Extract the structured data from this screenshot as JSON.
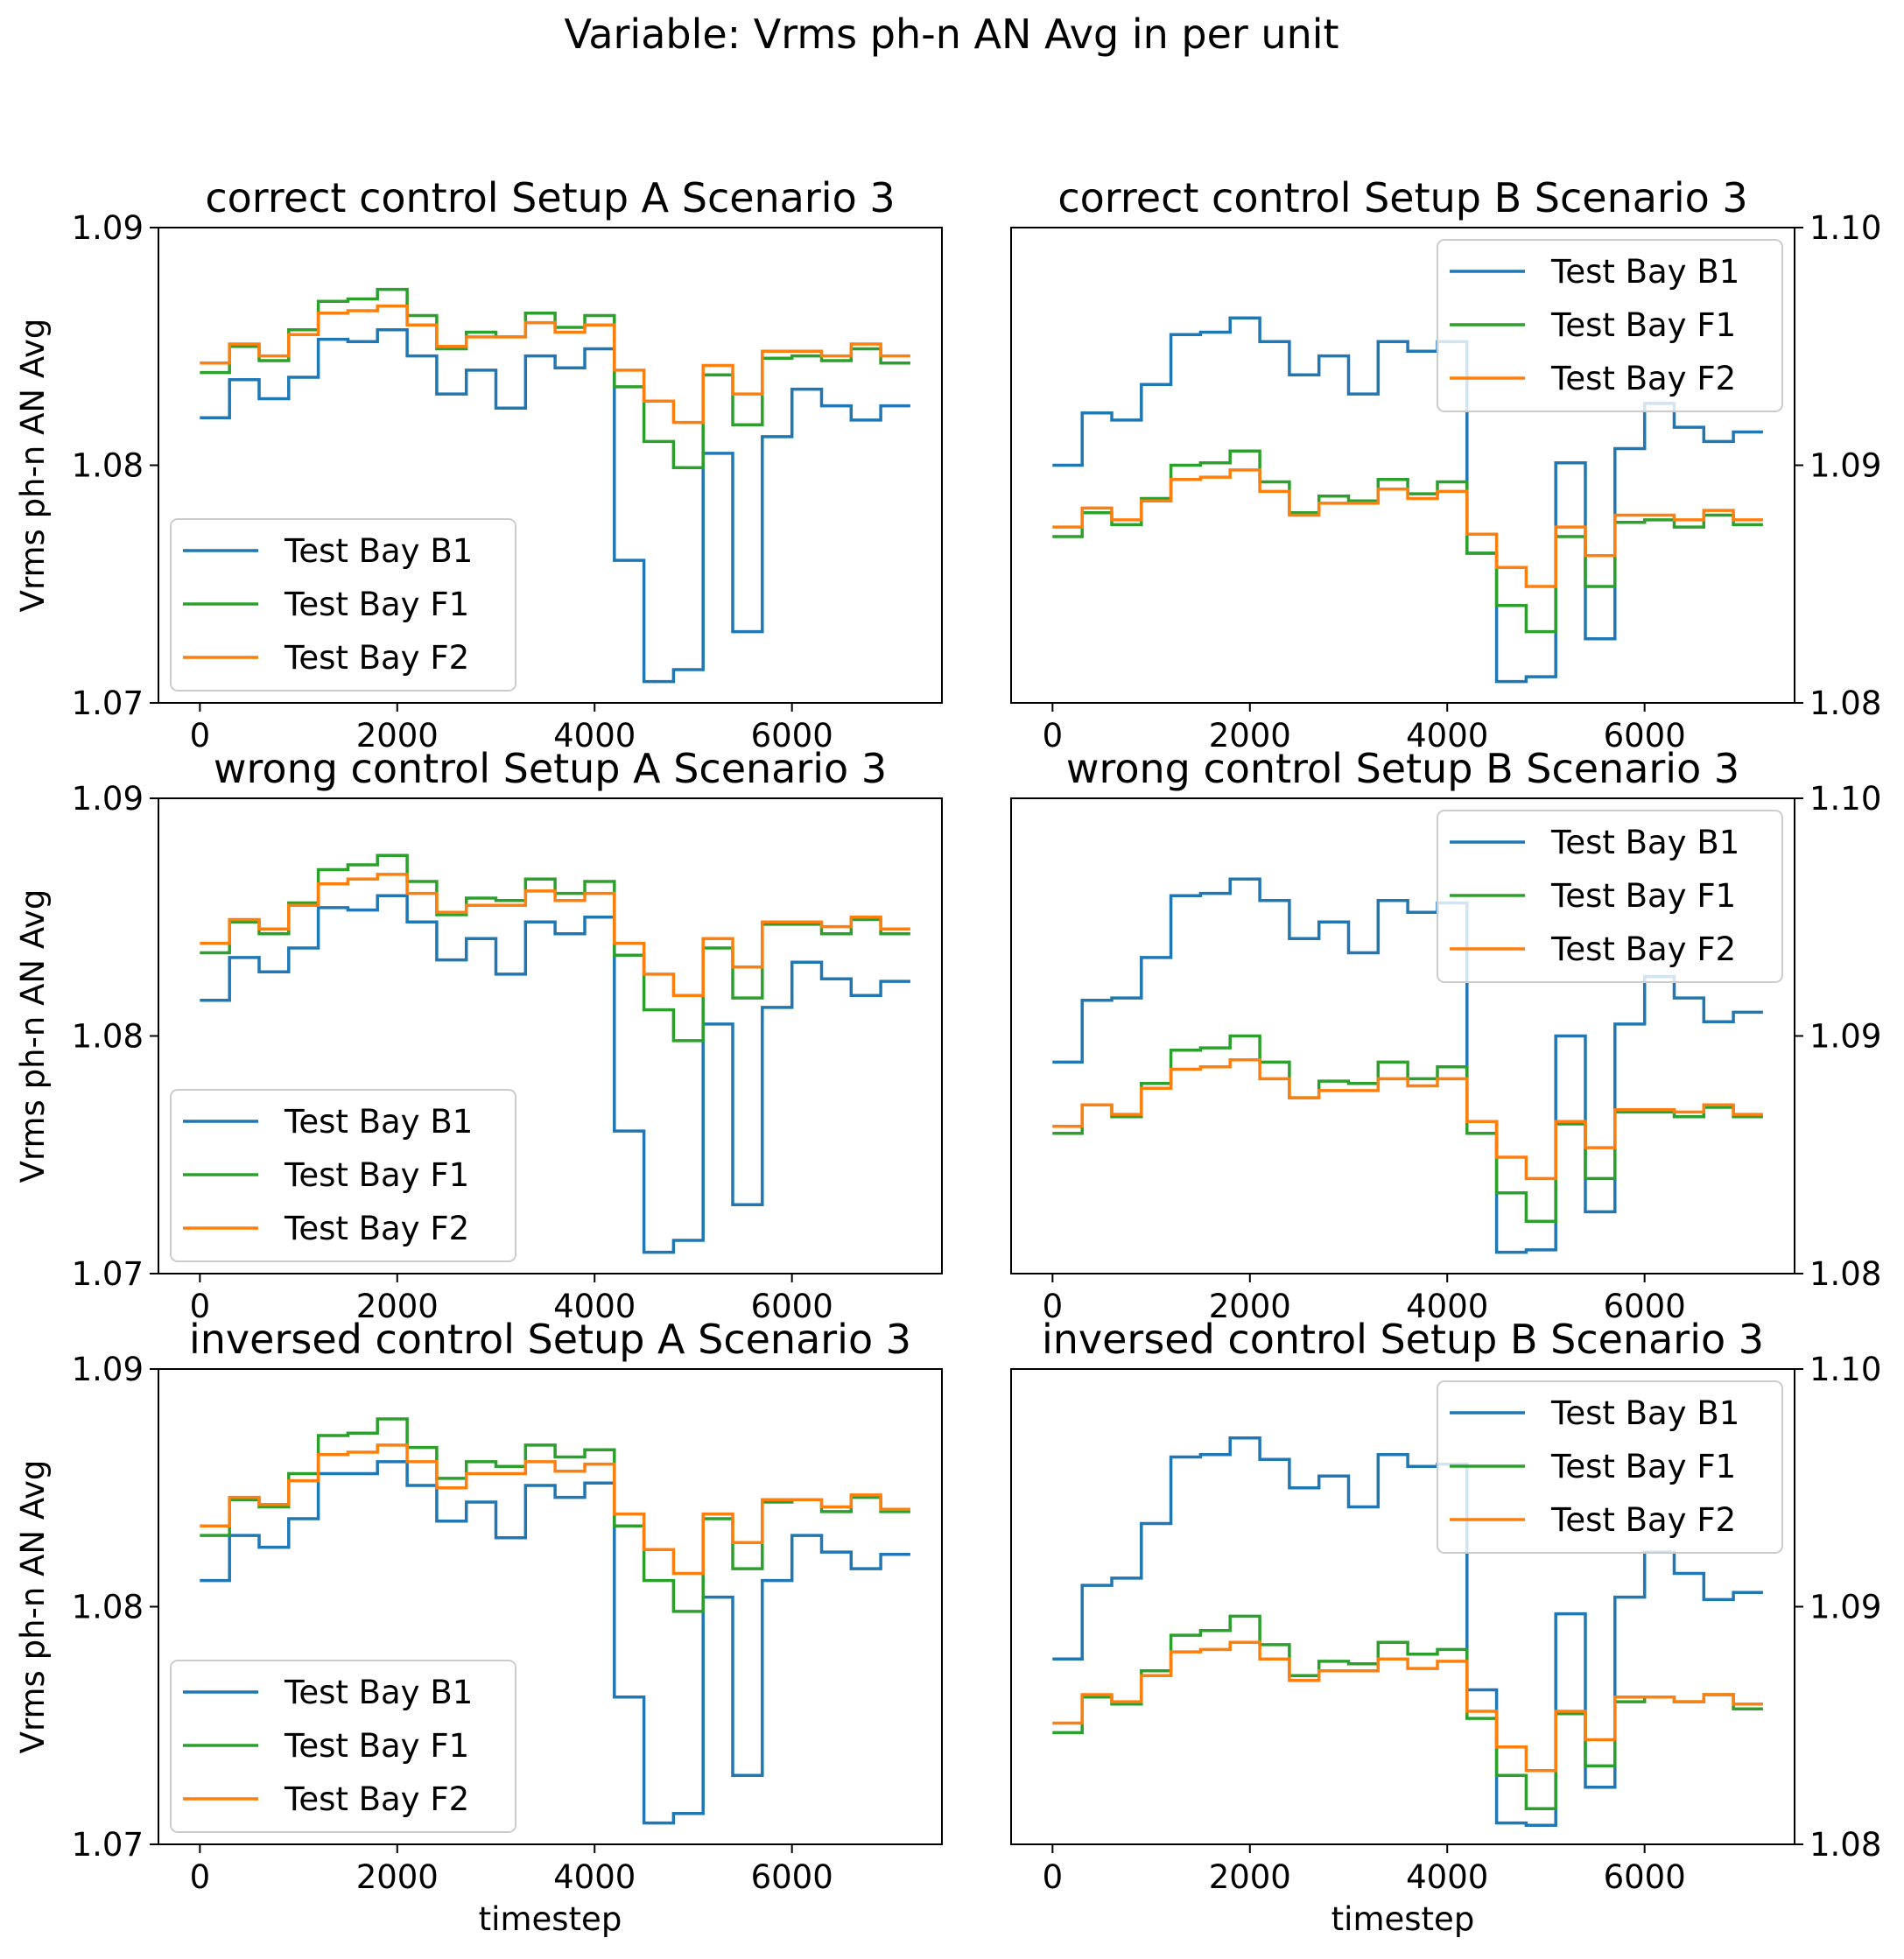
{
  "suptitle": "Variable: Vrms ph-n AN Avg in per unit",
  "colors": {
    "Test Bay B1": "#1f77b4",
    "Test Bay F1": "#2ca02c",
    "Test Bay F2": "#ff7f0e"
  },
  "chart_data": [
    {
      "type": "line",
      "step": true,
      "title": "correct control Setup A Scenario 3",
      "xlabel": "",
      "ylabel": "Vrms ph-n AN Avg",
      "xlim": [
        -420,
        7520
      ],
      "ylim": [
        1.07,
        1.09
      ],
      "xticks": [
        "0",
        "2000",
        "4000",
        "6000"
      ],
      "yticks": [
        "1.07",
        "1.08",
        "1.09"
      ],
      "legend_loc": "lower-left",
      "x": [
        0,
        300,
        600,
        900,
        1200,
        1500,
        1800,
        2100,
        2400,
        2700,
        3000,
        3300,
        3600,
        3900,
        4200,
        4500,
        4800,
        5100,
        5400,
        5700,
        6000,
        6300,
        6600,
        6900,
        7200
      ],
      "series": [
        {
          "name": "Test Bay B1",
          "values": [
            1.082,
            1.0836,
            1.0828,
            1.0837,
            1.0853,
            1.0852,
            1.0857,
            1.0846,
            1.083,
            1.084,
            1.0824,
            1.0846,
            1.0841,
            1.0849,
            1.076,
            1.0709,
            1.0714,
            1.0805,
            1.073,
            1.0812,
            1.0832,
            1.0825,
            1.0819,
            1.0825,
            1.0825
          ]
        },
        {
          "name": "Test Bay F1",
          "values": [
            1.0839,
            1.085,
            1.0844,
            1.0857,
            1.0869,
            1.087,
            1.0874,
            1.0863,
            1.0849,
            1.0856,
            1.0854,
            1.0864,
            1.0858,
            1.0863,
            1.0833,
            1.081,
            1.0799,
            1.0838,
            1.0817,
            1.0845,
            1.0846,
            1.0844,
            1.0849,
            1.0843,
            1.0843
          ]
        },
        {
          "name": "Test Bay F2",
          "values": [
            1.0843,
            1.0851,
            1.0846,
            1.0855,
            1.0864,
            1.0865,
            1.0867,
            1.0859,
            1.085,
            1.0854,
            1.0854,
            1.086,
            1.0856,
            1.0859,
            1.084,
            1.0827,
            1.0818,
            1.0842,
            1.083,
            1.0848,
            1.0848,
            1.0846,
            1.0851,
            1.0846,
            1.0846
          ]
        }
      ]
    },
    {
      "type": "line",
      "step": true,
      "title": "correct control Setup B Scenario 3",
      "xlabel": "",
      "ylabel": "",
      "xlim": [
        -420,
        7520
      ],
      "ylim": [
        1.08,
        1.1
      ],
      "xticks": [
        "0",
        "2000",
        "4000",
        "6000"
      ],
      "yticks": [
        "1.08",
        "1.09",
        "1.10"
      ],
      "legend_loc": "upper-right",
      "x": [
        0,
        300,
        600,
        900,
        1200,
        1500,
        1800,
        2100,
        2400,
        2700,
        3000,
        3300,
        3600,
        3900,
        4200,
        4500,
        4800,
        5100,
        5400,
        5700,
        6000,
        6300,
        6600,
        6900,
        7200
      ],
      "series": [
        {
          "name": "Test Bay B1",
          "values": [
            1.09,
            1.0922,
            1.0919,
            1.0934,
            1.0955,
            1.0956,
            1.0962,
            1.0952,
            1.0938,
            1.0946,
            1.093,
            1.0952,
            1.0948,
            1.0952,
            1.0863,
            1.0809,
            1.0811,
            1.0901,
            1.0827,
            1.0907,
            1.0926,
            1.0916,
            1.091,
            1.0914,
            1.0914
          ]
        },
        {
          "name": "Test Bay F1",
          "values": [
            1.087,
            1.088,
            1.0875,
            1.0886,
            1.09,
            1.0901,
            1.0906,
            1.0893,
            1.088,
            1.0887,
            1.0885,
            1.0894,
            1.0888,
            1.0893,
            1.0863,
            1.0841,
            1.083,
            1.087,
            1.0849,
            1.0876,
            1.0877,
            1.0874,
            1.0879,
            1.0875,
            1.0875
          ]
        },
        {
          "name": "Test Bay F2",
          "values": [
            1.0874,
            1.0882,
            1.0877,
            1.0885,
            1.0894,
            1.0895,
            1.0898,
            1.0889,
            1.0879,
            1.0884,
            1.0884,
            1.089,
            1.0886,
            1.0889,
            1.0871,
            1.0857,
            1.0849,
            1.0874,
            1.0862,
            1.0879,
            1.0879,
            1.0877,
            1.0881,
            1.0877,
            1.0877
          ]
        }
      ]
    },
    {
      "type": "line",
      "step": true,
      "title": "wrong control Setup A Scenario 3",
      "xlabel": "",
      "ylabel": "Vrms ph-n AN Avg",
      "xlim": [
        -420,
        7520
      ],
      "ylim": [
        1.07,
        1.09
      ],
      "xticks": [
        "0",
        "2000",
        "4000",
        "6000"
      ],
      "yticks": [
        "1.07",
        "1.08",
        "1.09"
      ],
      "legend_loc": "lower-left",
      "x": [
        0,
        300,
        600,
        900,
        1200,
        1500,
        1800,
        2100,
        2400,
        2700,
        3000,
        3300,
        3600,
        3900,
        4200,
        4500,
        4800,
        5100,
        5400,
        5700,
        6000,
        6300,
        6600,
        6900,
        7200
      ],
      "series": [
        {
          "name": "Test Bay B1",
          "values": [
            1.0815,
            1.0833,
            1.0827,
            1.0837,
            1.0854,
            1.0853,
            1.0859,
            1.0848,
            1.0832,
            1.0841,
            1.0826,
            1.0848,
            1.0843,
            1.085,
            1.076,
            1.0709,
            1.0714,
            1.0805,
            1.0729,
            1.0812,
            1.0831,
            1.0824,
            1.0817,
            1.0823,
            1.0823
          ]
        },
        {
          "name": "Test Bay F1",
          "values": [
            1.0835,
            1.0848,
            1.0843,
            1.0856,
            1.087,
            1.0872,
            1.0876,
            1.0865,
            1.0851,
            1.0858,
            1.0857,
            1.0866,
            1.086,
            1.0865,
            1.0834,
            1.0811,
            1.0798,
            1.0837,
            1.0816,
            1.0847,
            1.0847,
            1.0843,
            1.0849,
            1.0843,
            1.0843
          ]
        },
        {
          "name": "Test Bay F2",
          "values": [
            1.0839,
            1.0849,
            1.0845,
            1.0855,
            1.0864,
            1.0866,
            1.0868,
            1.086,
            1.0852,
            1.0855,
            1.0855,
            1.0861,
            1.0857,
            1.086,
            1.0839,
            1.0826,
            1.0817,
            1.0841,
            1.0829,
            1.0848,
            1.0848,
            1.0846,
            1.085,
            1.0845,
            1.0845
          ]
        }
      ]
    },
    {
      "type": "line",
      "step": true,
      "title": "wrong control Setup B Scenario 3",
      "xlabel": "",
      "ylabel": "",
      "xlim": [
        -420,
        7520
      ],
      "ylim": [
        1.08,
        1.1
      ],
      "xticks": [
        "0",
        "2000",
        "4000",
        "6000"
      ],
      "yticks": [
        "1.08",
        "1.09",
        "1.10"
      ],
      "legend_loc": "upper-right",
      "x": [
        0,
        300,
        600,
        900,
        1200,
        1500,
        1800,
        2100,
        2400,
        2700,
        3000,
        3300,
        3600,
        3900,
        4200,
        4500,
        4800,
        5100,
        5400,
        5700,
        6000,
        6300,
        6600,
        6900,
        7200
      ],
      "series": [
        {
          "name": "Test Bay B1",
          "values": [
            1.0889,
            1.0915,
            1.0916,
            1.0933,
            1.0959,
            1.096,
            1.0966,
            1.0957,
            1.0941,
            1.0948,
            1.0935,
            1.0957,
            1.0952,
            1.0956,
            1.0864,
            1.0809,
            1.081,
            1.09,
            1.0826,
            1.0905,
            1.0925,
            1.0916,
            1.0906,
            1.091,
            1.091
          ]
        },
        {
          "name": "Test Bay F1",
          "values": [
            1.0859,
            1.0871,
            1.0866,
            1.088,
            1.0894,
            1.0895,
            1.09,
            1.0889,
            1.0874,
            1.0881,
            1.088,
            1.0889,
            1.0882,
            1.0887,
            1.0859,
            1.0834,
            1.0822,
            1.0863,
            1.084,
            1.0868,
            1.0868,
            1.0866,
            1.087,
            1.0866,
            1.0866
          ]
        },
        {
          "name": "Test Bay F2",
          "values": [
            1.0862,
            1.0871,
            1.0867,
            1.0878,
            1.0886,
            1.0887,
            1.089,
            1.0882,
            1.0874,
            1.0877,
            1.0877,
            1.0882,
            1.0879,
            1.0882,
            1.0864,
            1.0849,
            1.084,
            1.0864,
            1.0853,
            1.0869,
            1.0869,
            1.0868,
            1.0871,
            1.0867,
            1.0867
          ]
        }
      ]
    },
    {
      "type": "line",
      "step": true,
      "title": "inversed control Setup A Scenario 3",
      "xlabel": "timestep",
      "ylabel": "Vrms ph-n AN Avg",
      "xlim": [
        -420,
        7520
      ],
      "ylim": [
        1.07,
        1.09
      ],
      "xticks": [
        "0",
        "2000",
        "4000",
        "6000"
      ],
      "yticks": [
        "1.07",
        "1.08",
        "1.09"
      ],
      "legend_loc": "lower-left",
      "x": [
        0,
        300,
        600,
        900,
        1200,
        1500,
        1800,
        2100,
        2400,
        2700,
        3000,
        3300,
        3600,
        3900,
        4200,
        4500,
        4800,
        5100,
        5400,
        5700,
        6000,
        6300,
        6600,
        6900,
        7200
      ],
      "series": [
        {
          "name": "Test Bay B1",
          "values": [
            1.0811,
            1.083,
            1.0825,
            1.0837,
            1.0856,
            1.0856,
            1.0861,
            1.0851,
            1.0836,
            1.0844,
            1.0829,
            1.0851,
            1.0846,
            1.0852,
            1.0762,
            1.0709,
            1.0713,
            1.0804,
            1.0729,
            1.0811,
            1.083,
            1.0823,
            1.0816,
            1.0822,
            1.0822
          ]
        },
        {
          "name": "Test Bay F1",
          "values": [
            1.083,
            1.0845,
            1.0842,
            1.0856,
            1.0872,
            1.0873,
            1.0879,
            1.0867,
            1.0854,
            1.0861,
            1.0859,
            1.0868,
            1.0863,
            1.0866,
            1.0834,
            1.0811,
            1.0798,
            1.0837,
            1.0816,
            1.0844,
            1.0845,
            1.084,
            1.0846,
            1.084,
            1.084
          ]
        },
        {
          "name": "Test Bay F2",
          "values": [
            1.0834,
            1.0846,
            1.0843,
            1.0853,
            1.0864,
            1.0865,
            1.0868,
            1.0861,
            1.085,
            1.0856,
            1.0856,
            1.0861,
            1.0857,
            1.086,
            1.0839,
            1.0824,
            1.0814,
            1.0839,
            1.0827,
            1.0845,
            1.0845,
            1.0842,
            1.0847,
            1.0841,
            1.0841
          ]
        }
      ]
    },
    {
      "type": "line",
      "step": true,
      "title": "inversed control Setup B Scenario 3",
      "xlabel": "timestep",
      "ylabel": "",
      "xlim": [
        -420,
        7520
      ],
      "ylim": [
        1.08,
        1.1
      ],
      "xticks": [
        "0",
        "2000",
        "4000",
        "6000"
      ],
      "yticks": [
        "1.08",
        "1.09",
        "1.10"
      ],
      "legend_loc": "upper-right",
      "x": [
        0,
        300,
        600,
        900,
        1200,
        1500,
        1800,
        2100,
        2400,
        2700,
        3000,
        3300,
        3600,
        3900,
        4200,
        4500,
        4800,
        5100,
        5400,
        5700,
        6000,
        6300,
        6600,
        6900,
        7200
      ],
      "series": [
        {
          "name": "Test Bay B1",
          "values": [
            1.0878,
            1.0909,
            1.0912,
            1.0935,
            1.0963,
            1.0964,
            1.0971,
            1.0962,
            1.095,
            1.0955,
            1.0942,
            1.0964,
            1.0959,
            1.096,
            1.0865,
            1.0809,
            1.0808,
            1.0897,
            1.0824,
            1.0904,
            1.0923,
            1.0914,
            1.0903,
            1.0906,
            1.0906
          ]
        },
        {
          "name": "Test Bay F1",
          "values": [
            1.0847,
            1.0862,
            1.0859,
            1.0873,
            1.0888,
            1.089,
            1.0896,
            1.0884,
            1.0871,
            1.0877,
            1.0876,
            1.0885,
            1.088,
            1.0882,
            1.0853,
            1.0829,
            1.0815,
            1.0855,
            1.0833,
            1.086,
            1.0862,
            1.086,
            1.0863,
            1.0857,
            1.0857
          ]
        },
        {
          "name": "Test Bay F2",
          "values": [
            1.0851,
            1.0863,
            1.086,
            1.0871,
            1.0881,
            1.0882,
            1.0885,
            1.0878,
            1.0869,
            1.0873,
            1.0873,
            1.0878,
            1.0874,
            1.0877,
            1.0856,
            1.0841,
            1.0831,
            1.0856,
            1.0844,
            1.0862,
            1.0862,
            1.086,
            1.0863,
            1.0859,
            1.0859
          ]
        }
      ]
    }
  ]
}
